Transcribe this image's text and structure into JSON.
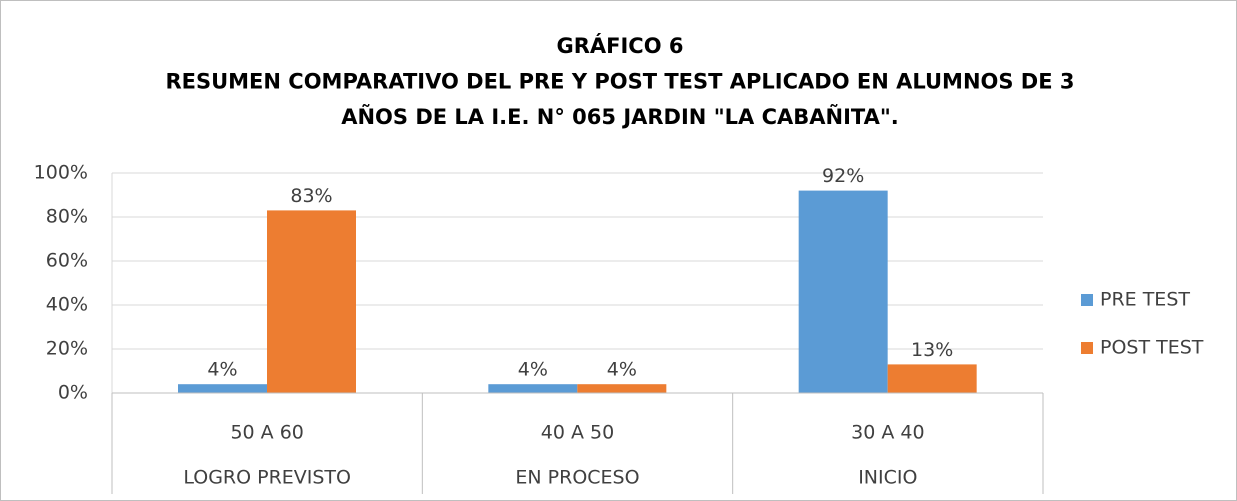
{
  "chart_data": {
    "type": "bar",
    "title": [
      "GRÁFICO 6",
      "RESUMEN COMPARATIVO DEL PRE Y POST TEST APLICADO EN ALUMNOS DE 3",
      "AÑOS DE LA I.E. N° 065 JARDIN \"LA CABAÑITA\"."
    ],
    "categories": [
      "50 A 60",
      "40 A 50",
      "30 A 40"
    ],
    "category_groups": [
      "LOGRO PREVISTO",
      "EN PROCESO",
      "INICIO"
    ],
    "series": [
      {
        "name": "PRE TEST",
        "color": "#5b9bd5",
        "values": [
          4,
          4,
          92
        ],
        "value_labels": [
          "4%",
          "4%",
          "92%"
        ]
      },
      {
        "name": "POST TEST",
        "color": "#ed7d31",
        "values": [
          83,
          4,
          13
        ],
        "value_labels": [
          "83%",
          "4%",
          "13%"
        ]
      }
    ],
    "ylim": [
      0,
      100
    ],
    "yticks": [
      {
        "value": 0,
        "label": "0%"
      },
      {
        "value": 20,
        "label": "20%"
      },
      {
        "value": 40,
        "label": "40%"
      },
      {
        "value": 60,
        "label": "60%"
      },
      {
        "value": 80,
        "label": "80%"
      },
      {
        "value": 100,
        "label": "100%"
      }
    ],
    "grid": true,
    "legend": "right"
  }
}
